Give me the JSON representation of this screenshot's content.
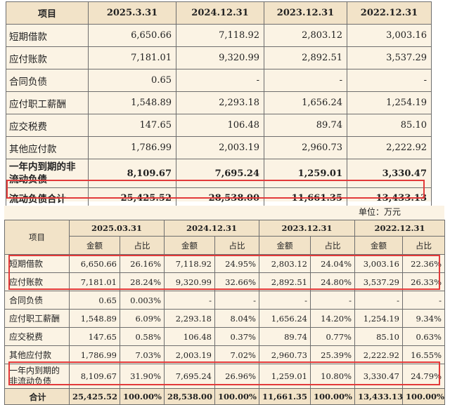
{
  "top_table": {
    "headers": [
      "项目",
      "2025.3.31",
      "2024.12.31",
      "2023.12.31",
      "2022.12.31"
    ],
    "rows": [
      {
        "label": "短期借款",
        "values": [
          "6,650.66",
          "7,118.92",
          "2,803.12",
          "3,003.16"
        ]
      },
      {
        "label": "应付账款",
        "values": [
          "7,181.01",
          "9,320.99",
          "2,892.51",
          "3,537.29"
        ]
      },
      {
        "label": "合同负债",
        "values": [
          "0.65",
          "-",
          "-",
          "-"
        ]
      },
      {
        "label": "应付职工薪酬",
        "values": [
          "1,548.89",
          "2,293.18",
          "1,656.24",
          "1,254.19"
        ]
      },
      {
        "label": "应交税费",
        "values": [
          "147.65",
          "106.48",
          "89.74",
          "85.10"
        ]
      },
      {
        "label": "其他应付款",
        "values": [
          "1,786.99",
          "2,003.19",
          "2,960.73",
          "2,222.92"
        ]
      },
      {
        "label": "一年内到期的非流动负债",
        "values": [
          "8,109.67",
          "7,695.24",
          "1,259.01",
          "3,330.47"
        ]
      },
      {
        "label": "流动负债合计",
        "values": [
          "25,425.52",
          "28,538.00",
          "11,661.35",
          "13,433.13"
        ]
      }
    ]
  },
  "bottom_table": {
    "unit": "单位：万元",
    "item_header": "项目",
    "years": [
      "2025.03.31",
      "2024.12.31",
      "2023.12.31",
      "2022.12.31"
    ],
    "sub_amount": "金额",
    "sub_ratio": "占比",
    "rows": [
      {
        "label": "短期借款",
        "values": [
          "6,650.66",
          "26.16%",
          "7,118.92",
          "24.95%",
          "2,803.12",
          "24.04%",
          "3,003.16",
          "22.36%"
        ]
      },
      {
        "label": "应付账款",
        "values": [
          "7,181.01",
          "28.24%",
          "9,320.99",
          "32.66%",
          "2,892.51",
          "24.80%",
          "3,537.29",
          "26.33%"
        ]
      },
      {
        "label": "合同负债",
        "values": [
          "0.65",
          "0.003%",
          "-",
          "-",
          "-",
          "-",
          "-",
          "-"
        ]
      },
      {
        "label": "应付职工薪酬",
        "values": [
          "1,548.89",
          "6.09%",
          "2,293.18",
          "8.04%",
          "1,656.24",
          "14.20%",
          "1,254.19",
          "9.34%"
        ]
      },
      {
        "label": "应交税费",
        "values": [
          "147.65",
          "0.58%",
          "106.48",
          "0.37%",
          "89.74",
          "0.77%",
          "85.10",
          "0.63%"
        ]
      },
      {
        "label": "其他应付款",
        "values": [
          "1,786.99",
          "7.03%",
          "2,003.19",
          "7.02%",
          "2,960.73",
          "25.39%",
          "2,222.92",
          "16.55%"
        ]
      },
      {
        "label": "一年内到期的非流动负债",
        "values": [
          "8,109.67",
          "31.90%",
          "7,695.24",
          "26.96%",
          "1,259.01",
          "10.80%",
          "3,330.47",
          "24.79%"
        ]
      },
      {
        "label": "合计",
        "values": [
          "25,425.52",
          "100.00%",
          "28,538.00",
          "100.00%",
          "11,661.35",
          "100.00%",
          "13,433.13",
          "100.00%"
        ]
      }
    ]
  },
  "highlight_color": "#e23a3a"
}
